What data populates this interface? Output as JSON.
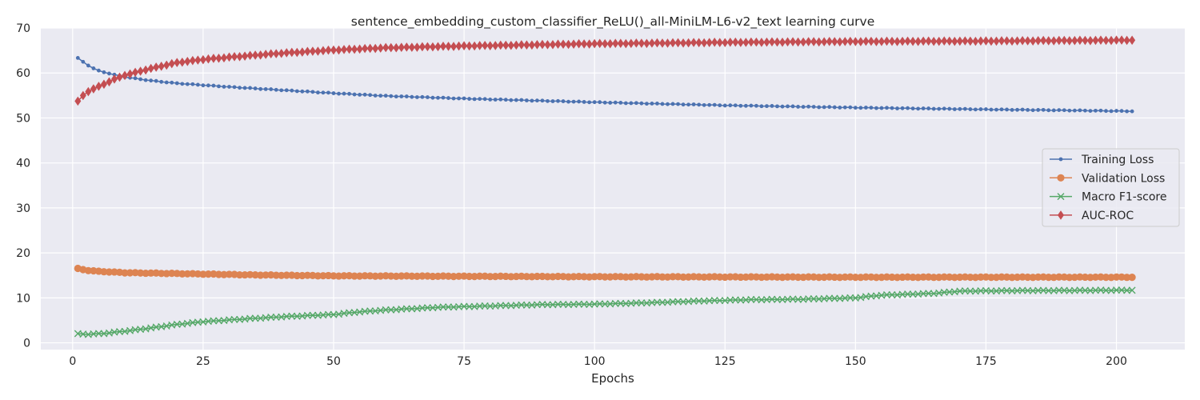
{
  "chart_data": {
    "type": "line",
    "title": "sentence_embedding_custom_classifier_ReLU()_all-MiniLM-L6-v2_text learning curve",
    "xlabel": "Epochs",
    "ylabel": "",
    "xlim": [
      -6.1,
      213.1
    ],
    "ylim": [
      -1.5,
      70
    ],
    "xticks": [
      0,
      25,
      50,
      75,
      100,
      125,
      150,
      175,
      200
    ],
    "yticks": [
      0,
      10,
      20,
      30,
      40,
      50,
      60,
      70
    ],
    "grid": true,
    "legend_position": "center-right",
    "background_color": "#eaeaf2",
    "grid_color": "#ffffff",
    "epoch_start": 1,
    "epoch_end": 203,
    "series": [
      {
        "name": "Training Loss",
        "color": "#4c72b0",
        "marker": "point",
        "anchors": [
          [
            1,
            63.3
          ],
          [
            2,
            62.5
          ],
          [
            3,
            61.7
          ],
          [
            4,
            61.0
          ],
          [
            5,
            60.5
          ],
          [
            6,
            60.2
          ],
          [
            8,
            59.6
          ],
          [
            10,
            59.1
          ],
          [
            15,
            58.3
          ],
          [
            20,
            57.7
          ],
          [
            25,
            57.3
          ],
          [
            30,
            56.9
          ],
          [
            40,
            56.2
          ],
          [
            50,
            55.5
          ],
          [
            60,
            54.9
          ],
          [
            75,
            54.3
          ],
          [
            100,
            53.5
          ],
          [
            125,
            52.8
          ],
          [
            150,
            52.3
          ],
          [
            175,
            51.9
          ],
          [
            190,
            51.7
          ],
          [
            203,
            51.5
          ]
        ]
      },
      {
        "name": "Validation Loss",
        "color": "#dd8452",
        "marker": "circle",
        "anchors": [
          [
            1,
            16.5
          ],
          [
            3,
            16.1
          ],
          [
            5,
            15.9
          ],
          [
            10,
            15.6
          ],
          [
            15,
            15.5
          ],
          [
            20,
            15.4
          ],
          [
            25,
            15.3
          ],
          [
            35,
            15.1
          ],
          [
            50,
            14.9
          ],
          [
            75,
            14.8
          ],
          [
            100,
            14.7
          ],
          [
            150,
            14.6
          ],
          [
            203,
            14.6
          ]
        ]
      },
      {
        "name": "Macro F1-score",
        "color": "#55a868",
        "marker": "x",
        "anchors": [
          [
            1,
            2.0
          ],
          [
            3,
            1.9
          ],
          [
            6,
            2.1
          ],
          [
            10,
            2.6
          ],
          [
            15,
            3.3
          ],
          [
            20,
            4.1
          ],
          [
            25,
            4.7
          ],
          [
            30,
            5.1
          ],
          [
            40,
            5.8
          ],
          [
            50,
            6.3
          ],
          [
            55,
            6.9
          ],
          [
            60,
            7.3
          ],
          [
            70,
            7.9
          ],
          [
            80,
            8.2
          ],
          [
            90,
            8.5
          ],
          [
            100,
            8.6
          ],
          [
            110,
            8.9
          ],
          [
            120,
            9.3
          ],
          [
            130,
            9.6
          ],
          [
            140,
            9.7
          ],
          [
            150,
            10.0
          ],
          [
            155,
            10.6
          ],
          [
            165,
            11.0
          ],
          [
            170,
            11.5
          ],
          [
            180,
            11.6
          ],
          [
            203,
            11.7
          ]
        ]
      },
      {
        "name": "AUC-ROC",
        "color": "#c44e52",
        "marker": "diamond",
        "anchors": [
          [
            1,
            53.7
          ],
          [
            2,
            55.0
          ],
          [
            3,
            55.9
          ],
          [
            5,
            57.0
          ],
          [
            8,
            58.6
          ],
          [
            10,
            59.5
          ],
          [
            15,
            61.0
          ],
          [
            20,
            62.3
          ],
          [
            25,
            63.0
          ],
          [
            30,
            63.5
          ],
          [
            40,
            64.4
          ],
          [
            50,
            65.1
          ],
          [
            60,
            65.6
          ],
          [
            75,
            66.0
          ],
          [
            100,
            66.5
          ],
          [
            125,
            66.8
          ],
          [
            150,
            67.0
          ],
          [
            175,
            67.1
          ],
          [
            203,
            67.3
          ]
        ]
      }
    ]
  }
}
